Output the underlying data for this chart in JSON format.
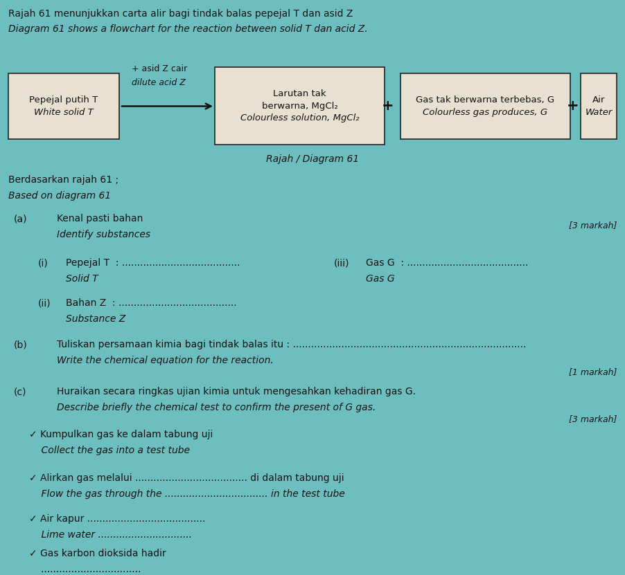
{
  "bg_color": "#6dbfbf",
  "title_line1": "Rajah 61 menunjukkan carta alir bagi tindak balas pepejal T dan asid Z",
  "title_line2": "Diagram 61 shows a flowchart for the reaction between solid T dan acid Z.",
  "box1_line1": "Pepejal putih T",
  "box1_line2": "White solid T",
  "arrow_label_line1": "+ asid Z cair",
  "arrow_label_line2": "dilute acid Z",
  "box2_line1": "Larutan tak",
  "box2_line2": "berwarna, MgCl₂",
  "box2_line3": "Colourless solution, MgCl₂",
  "box3_line1": "Gas tak berwarna terbebas, G",
  "box3_line2": "Colourless gas produces, G",
  "box4_line1": "Air",
  "box4_line2": "Water",
  "diagram_label": "Rajah / Diagram 61",
  "section_based": "Berdasarkan rajah 61 ;",
  "section_based_en": "Based on diagram 61",
  "part_a_label": "(a)",
  "part_a_text": "Kenal pasti bahan",
  "part_a_text_en": "Identify substances",
  "marks_a": "[3 markah]",
  "qi_label": "(i)",
  "qi_text": "Pepejal T",
  "qi_text_en": "Solid T",
  "qi_dots": "  : .......................................",
  "qiii_label": "(iii)",
  "qiii_text": "Gas G",
  "qiii_text_en": "Gas G",
  "qiii_dots": "  : ........................................",
  "qii_label": "(ii)",
  "qii_text": "Bahan Z",
  "qii_text_en": "Substance Z",
  "qii_dots": "  : .......................................",
  "part_b_label": "(b)",
  "part_b_text": "Tuliskan persamaan kimia bagi tindak balas itu : .............................................................................",
  "part_b_text_en": "Write the chemical equation for the reaction.",
  "marks_b": "[1 markah]",
  "part_c_label": "(c)",
  "part_c_text": "Huraikan secara ringkas ujian kimia untuk mengesahkan kehadiran gas G.",
  "part_c_text_en": "Describe briefly the chemical test to confirm the present of G gas.",
  "marks_c": "[3 markah]",
  "check1": "✓ Kumpulkan gas ke dalam tabung uji",
  "check1_en": "    Collect the gas into a test tube",
  "check2": "✓ Alirkan gas melalui ..................................... di dalam tabung uji",
  "check2_en": "    Flow the gas through the .................................. in the test tube",
  "check3": "✓ Air kapur .......................................",
  "check3_en": "    Lime water ...............................",
  "check4": "✓ Gas karbon dioksida hadir",
  "check4_en": "    .................................",
  "box_color": "#e8e0d0",
  "box_edge_color": "#222222",
  "text_color": "#111111",
  "plus_color": "#111111",
  "fig_w": 9.02,
  "fig_h": 8.31,
  "dpi": 100
}
